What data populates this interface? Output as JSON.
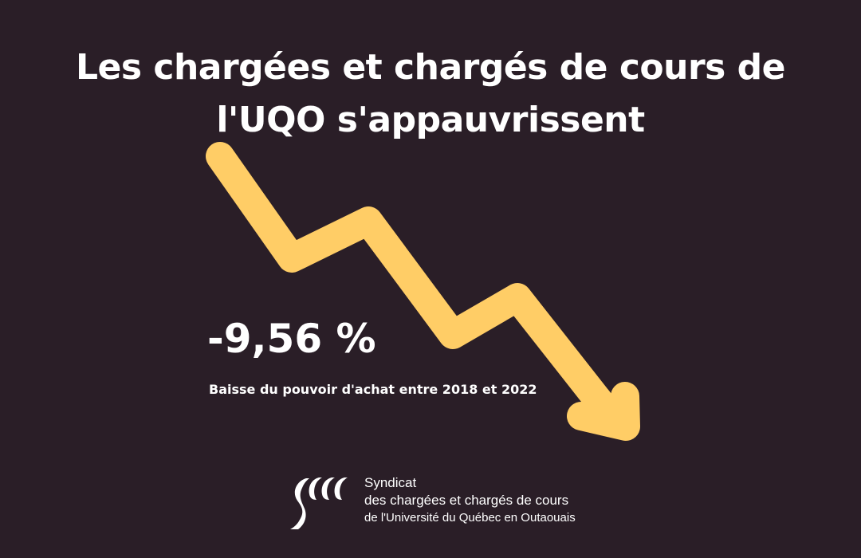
{
  "headline": {
    "line1": "Les chargées et chargés de cours de",
    "line2": "l'UQO s'appauvrissent"
  },
  "statistic": {
    "value": "-9,56 %",
    "caption": "Baisse du pouvoir d'achat entre 2018 et 2022"
  },
  "organization": {
    "line1": "Syndicat",
    "line2": "des chargées et chargés de cours",
    "line3": "de l'Université du Québec en Outaouais",
    "logo_icon": "sccuqo-logo-icon"
  },
  "colors": {
    "background": "#2a1e27",
    "arrow": "#ffcd66",
    "text": "#ffffff"
  },
  "icons": {
    "arrow": "down-trend-arrow-icon"
  }
}
